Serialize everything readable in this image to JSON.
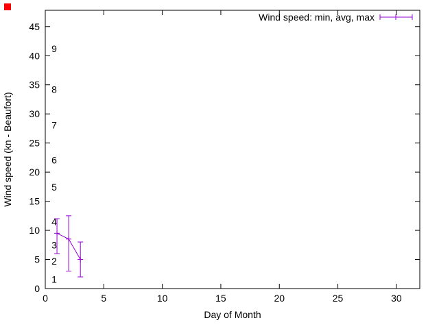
{
  "page": {
    "background": "#ffffff"
  },
  "corner_marker": {
    "color": "#ff0000"
  },
  "chart_data": {
    "type": "line",
    "subtype": "linespoints-with-yerrorbars",
    "title": "",
    "xlabel": "Day of Month",
    "ylabel": "Wind speed (kn - Beaufort)",
    "legend": "Wind speed: min, avg, max",
    "legend_position": "top-right-inside",
    "grid": false,
    "series_color": "#9400d3",
    "axis_color": "#000000",
    "xlim": [
      0,
      32
    ],
    "ylim": [
      0,
      47.8
    ],
    "x_ticks": [
      0,
      5,
      10,
      15,
      20,
      25,
      30
    ],
    "y_ticks": [
      0,
      5,
      10,
      15,
      20,
      25,
      30,
      35,
      40,
      45
    ],
    "beaufort_scale_labels": [
      {
        "label": "1",
        "kn": 1.6
      },
      {
        "label": "2",
        "kn": 4.7
      },
      {
        "label": "3",
        "kn": 7.5
      },
      {
        "label": "4",
        "kn": 11.5
      },
      {
        "label": "5",
        "kn": 17.4
      },
      {
        "label": "6",
        "kn": 22.1
      },
      {
        "label": "7",
        "kn": 28.1
      },
      {
        "label": "8",
        "kn": 34.2
      },
      {
        "label": "9",
        "kn": 41.2
      }
    ],
    "points": [
      {
        "day": 1,
        "min": 6,
        "avg": 9.5,
        "max": 12
      },
      {
        "day": 2,
        "min": 3,
        "avg": 8.5,
        "max": 12.5
      },
      {
        "day": 3,
        "min": 2,
        "avg": 5,
        "max": 8
      }
    ]
  }
}
